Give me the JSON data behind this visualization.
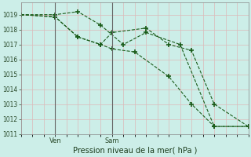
{
  "title": "Pression niveau de la mer( hPa )",
  "bg_color": "#cceee8",
  "grid_color_v": "#ddb8b8",
  "grid_color_h": "#ddb8b8",
  "line_color": "#1a5c1a",
  "ylim": [
    1011,
    1019.8
  ],
  "yticks": [
    1011,
    1012,
    1013,
    1014,
    1015,
    1016,
    1017,
    1018,
    1019
  ],
  "xlim": [
    0,
    10
  ],
  "ven_x": 1.5,
  "sam_x": 4.0,
  "line1_x": [
    0,
    1.5,
    2.5,
    3.5,
    4.5,
    5.5,
    7.0,
    8.5,
    10.0
  ],
  "line1_y": [
    1019.0,
    1019.0,
    1019.2,
    1018.3,
    1017.0,
    1017.8,
    1017.0,
    1011.5,
    1011.5
  ],
  "line2_x": [
    0,
    1.5,
    2.5,
    3.5,
    4.0,
    5.5,
    6.5,
    7.5,
    8.5,
    10.0
  ],
  "line2_y": [
    1019.0,
    1018.85,
    1017.5,
    1017.0,
    1017.8,
    1018.1,
    1017.0,
    1016.6,
    1013.0,
    1011.5
  ],
  "line3_x": [
    0,
    1.5,
    2.5,
    3.5,
    4.0,
    5.0,
    6.5,
    7.5,
    8.5,
    10.0
  ],
  "line3_y": [
    1019.0,
    1018.85,
    1017.5,
    1017.0,
    1016.7,
    1016.5,
    1014.85,
    1013.0,
    1011.5,
    1011.5
  ]
}
